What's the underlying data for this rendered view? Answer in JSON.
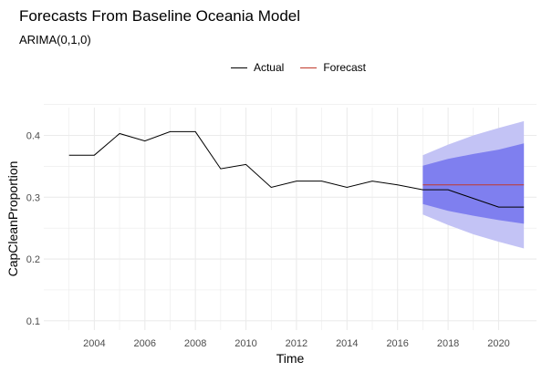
{
  "chart_data": {
    "type": "line",
    "title": "Forecasts From Baseline Oceania Model",
    "subtitle": "ARIMA(0,1,0)",
    "xlabel": "Time",
    "ylabel": "CapCleanProportion",
    "xlim": [
      2002.0,
      2021.5
    ],
    "ylim": [
      0.085,
      0.445
    ],
    "x_ticks": [
      2004,
      2006,
      2008,
      2010,
      2012,
      2014,
      2016,
      2018,
      2020
    ],
    "x_tick_labels": [
      "2004",
      "2006",
      "2008",
      "2010",
      "2012",
      "2014",
      "2016",
      "2018",
      "2020"
    ],
    "y_ticks": [
      0.1,
      0.2,
      0.3,
      0.4
    ],
    "y_tick_labels": [
      "0.1",
      "0.2",
      "0.3",
      "0.4"
    ],
    "grid": true,
    "legend_position": "top-center",
    "colors": {
      "actual": "#000000",
      "forecast": "#c0392b",
      "band80": "#7f7fef",
      "band95": "#c3c3f5",
      "grid": "#ebebeb"
    },
    "series": [
      {
        "name": "Actual",
        "x": [
          2003,
          2004,
          2005,
          2006,
          2007,
          2008,
          2009,
          2010,
          2011,
          2012,
          2013,
          2014,
          2015,
          2016,
          2017,
          2018,
          2019,
          2020,
          2021
        ],
        "values": [
          0.368,
          0.368,
          0.403,
          0.391,
          0.406,
          0.406,
          0.346,
          0.353,
          0.316,
          0.326,
          0.326,
          0.316,
          0.326,
          0.32,
          0.312,
          0.312,
          0.298,
          0.284,
          0.284
        ]
      },
      {
        "name": "Forecast",
        "x": [
          2017,
          2018,
          2019,
          2020,
          2021
        ],
        "values": [
          0.32,
          0.32,
          0.32,
          0.32,
          0.32
        ],
        "lower80": [
          0.289,
          0.278,
          0.27,
          0.263,
          0.257
        ],
        "upper80": [
          0.351,
          0.362,
          0.37,
          0.377,
          0.387
        ],
        "lower95": [
          0.272,
          0.255,
          0.24,
          0.228,
          0.217
        ],
        "upper95": [
          0.368,
          0.385,
          0.4,
          0.412,
          0.423
        ]
      }
    ]
  }
}
